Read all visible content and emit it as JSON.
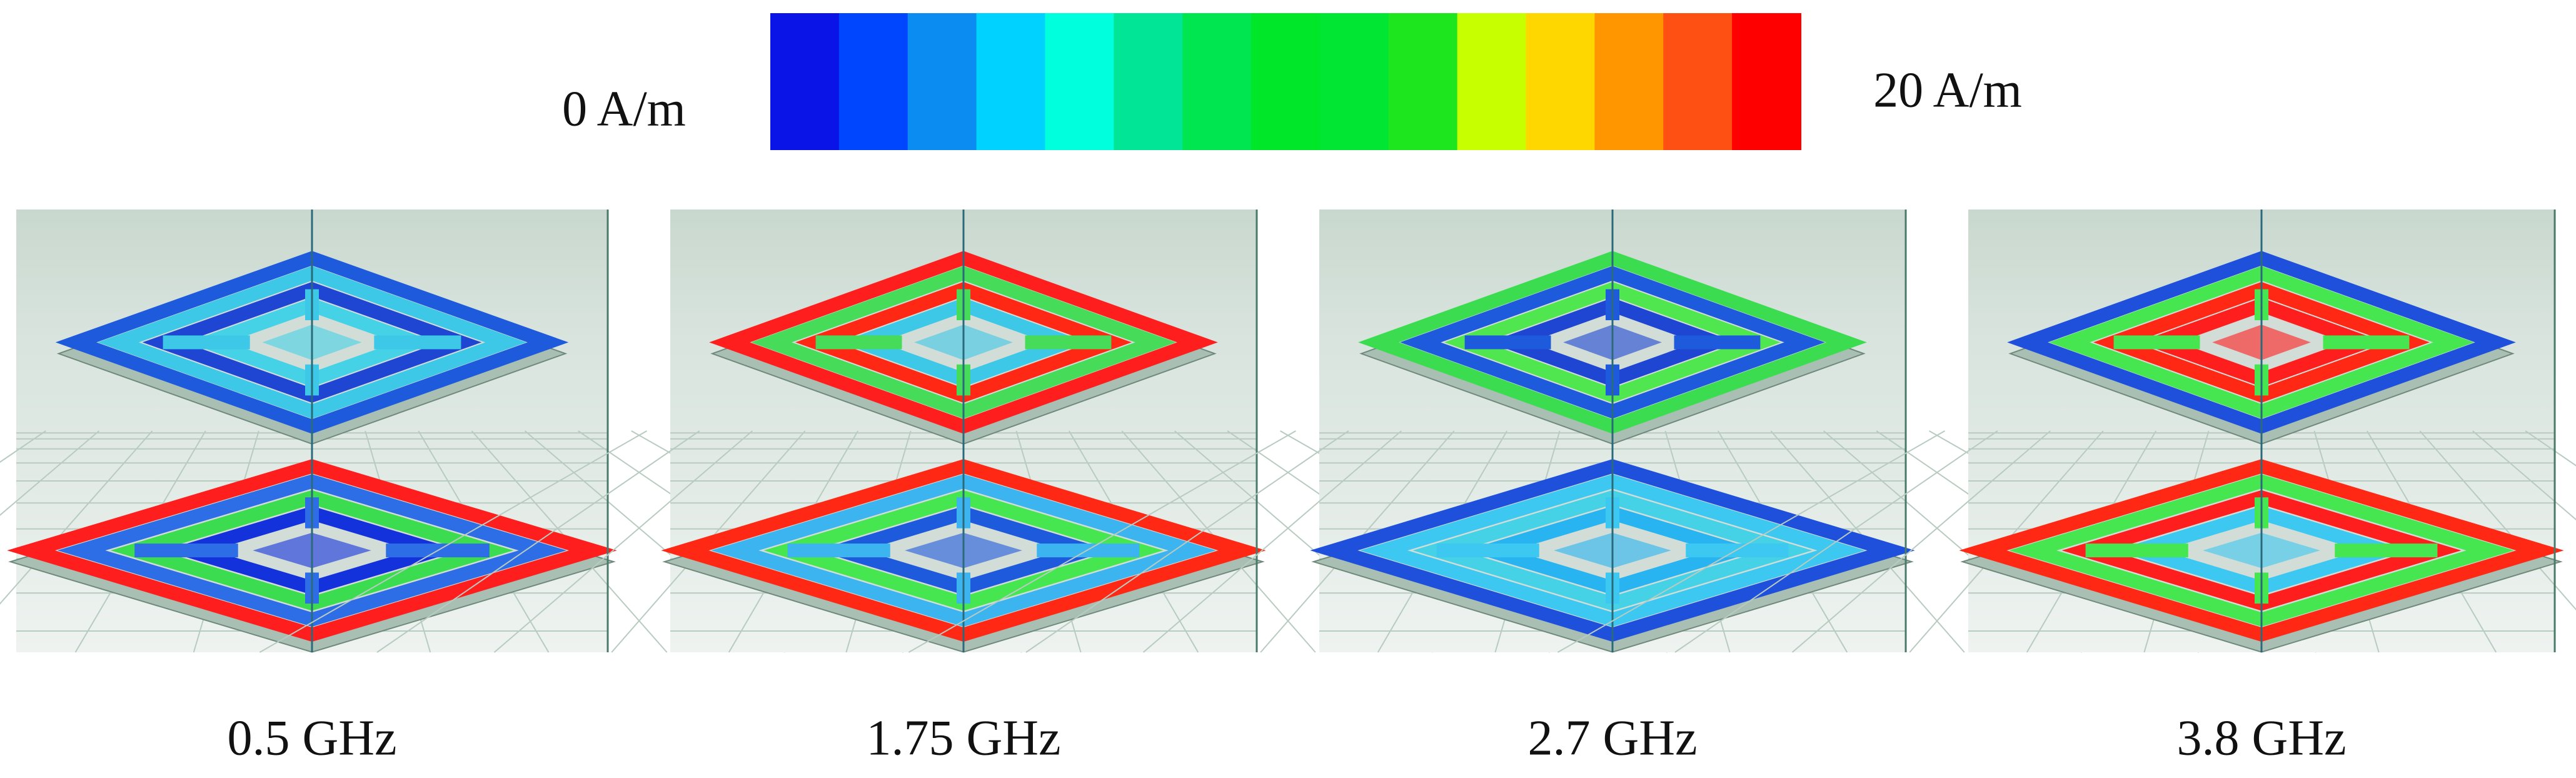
{
  "colorbar": {
    "min_label": "0 A/m",
    "max_label": "20 A/m"
  },
  "panels": [
    {
      "caption": "0.5 GHz"
    },
    {
      "caption": "1.75 GHz"
    },
    {
      "caption": "2.7 GHz"
    },
    {
      "caption": "3.8 GHz"
    }
  ]
}
